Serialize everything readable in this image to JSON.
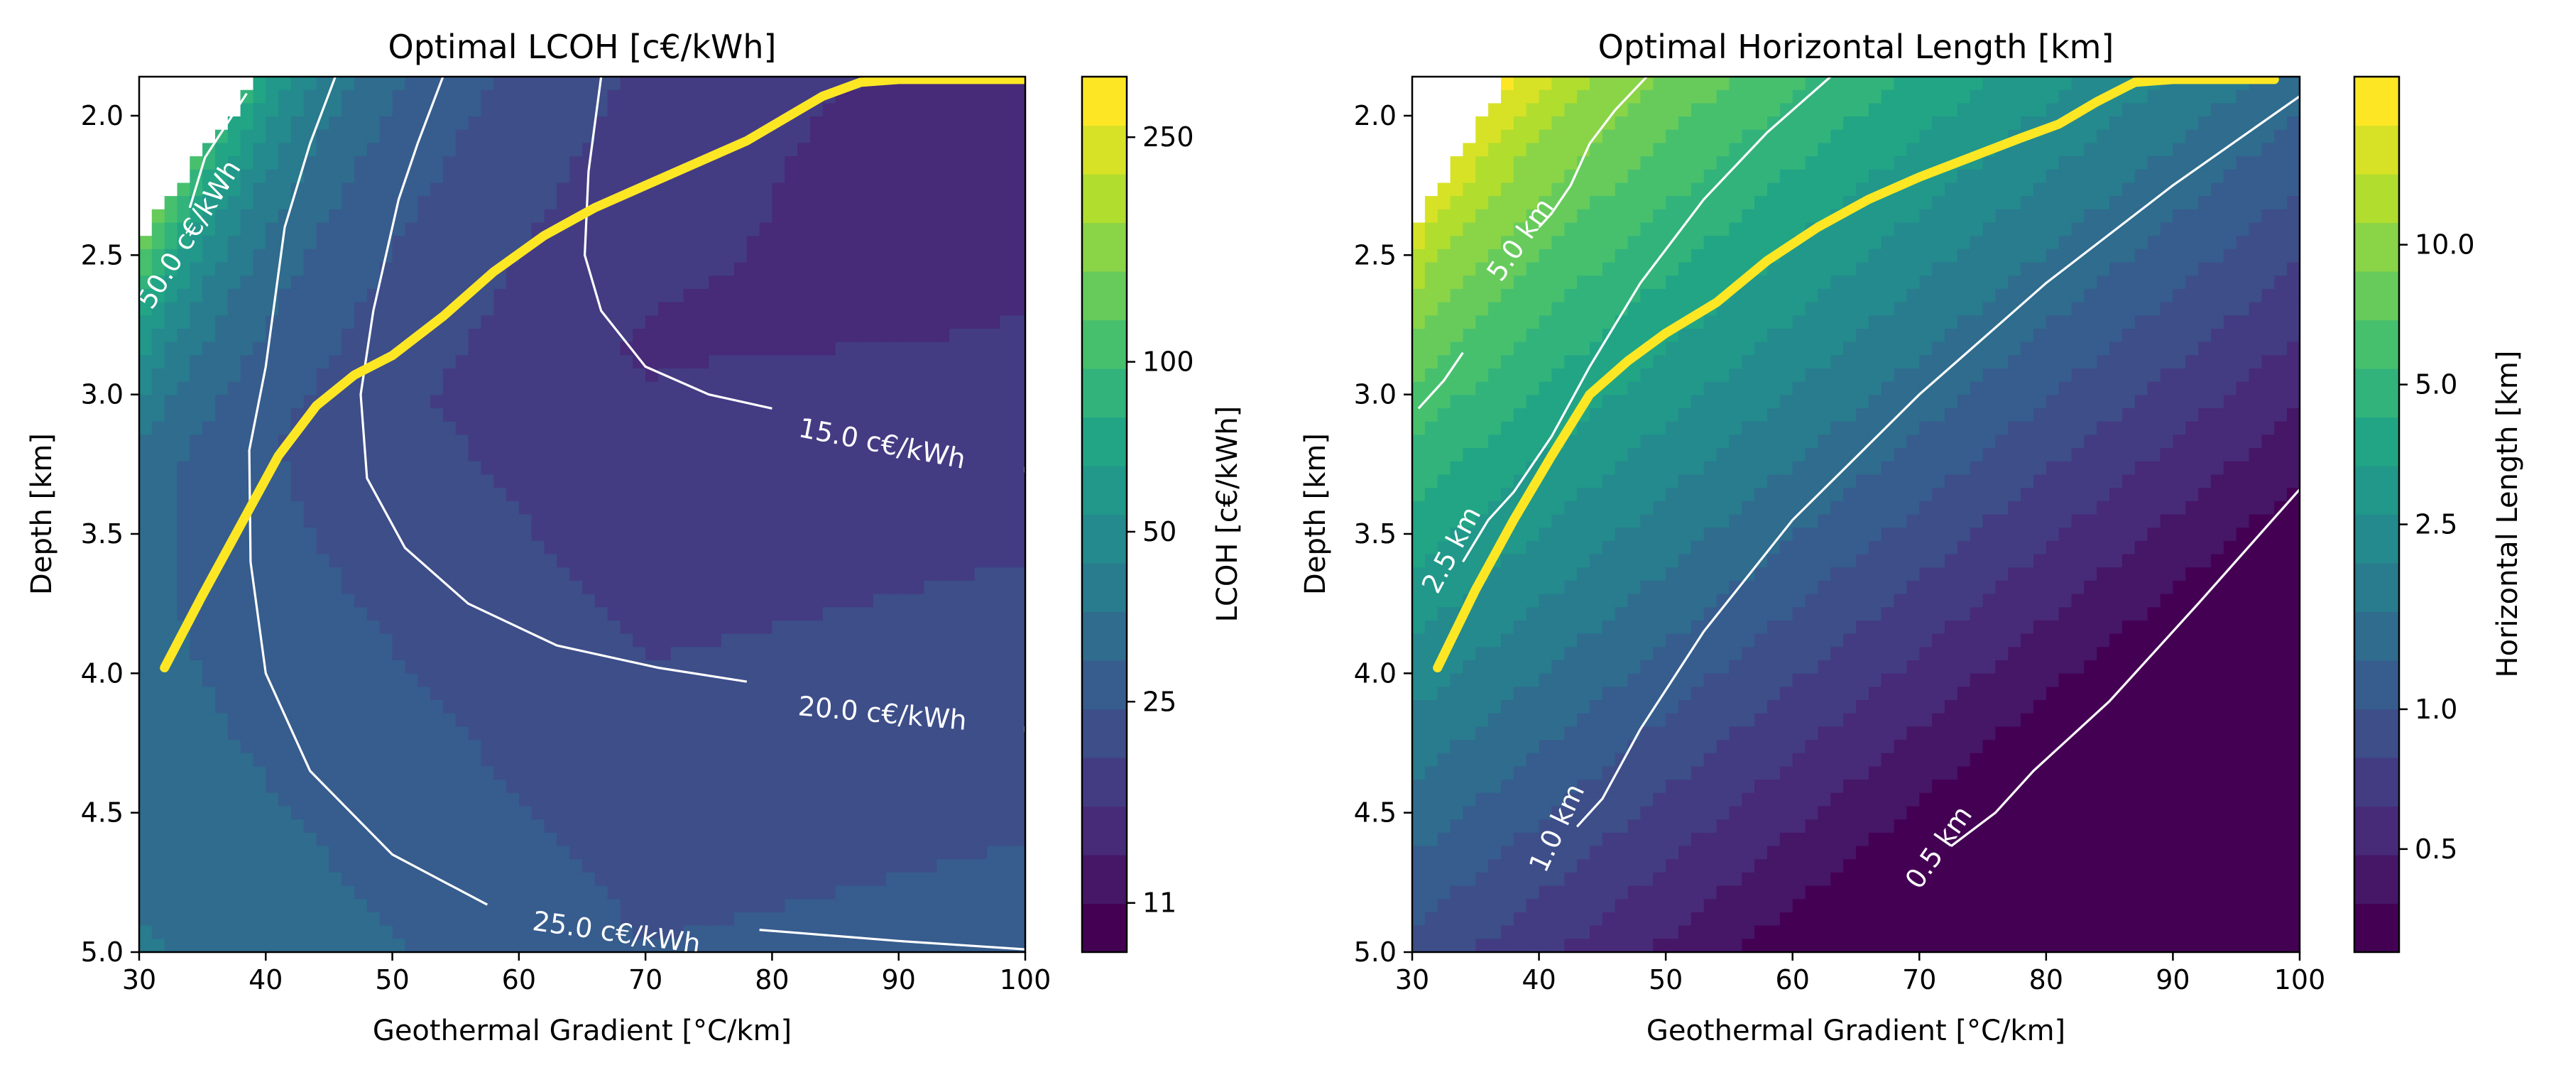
{
  "colors": {
    "viridis": [
      "#440154",
      "#482475",
      "#414487",
      "#355f8d",
      "#2a788e",
      "#21918c",
      "#22a884",
      "#44bf70",
      "#7ad151",
      "#bddf26",
      "#fde725"
    ],
    "optimal_line": "#fde725",
    "contour_line": "#ffffff"
  },
  "chart_data": [
    {
      "type": "contour",
      "title": "Optimal LCOH [c€/kWh]",
      "xlabel": "Geothermal Gradient [°C/km]",
      "ylabel": "Depth [km]",
      "xlim": [
        30,
        100
      ],
      "ylim": [
        1.86,
        5.0
      ],
      "y_inverted": true,
      "x_ticks": [
        "30",
        "40",
        "50",
        "60",
        "70",
        "80",
        "90",
        "100"
      ],
      "x_tick_values": [
        30,
        40,
        50,
        60,
        70,
        80,
        90,
        100
      ],
      "y_ticks": [
        "2.0",
        "2.5",
        "3.0",
        "3.5",
        "4.0",
        "4.5",
        "5.0"
      ],
      "y_tick_values": [
        2.0,
        2.5,
        3.0,
        3.5,
        4.0,
        4.5,
        5.0
      ],
      "colorbar": {
        "label": "LCOH [c€/kWh]",
        "scale": "log",
        "range": [
          9,
          320
        ],
        "ticks": [
          "11",
          "25",
          "50",
          "100",
          "250"
        ],
        "tick_values": [
          11,
          25,
          50,
          100,
          250
        ]
      },
      "contour_lines": [
        {
          "label": "15.0 c€/kWh",
          "points": [
            [
              66.5,
              1.86
            ],
            [
              65.5,
              2.2
            ],
            [
              65.2,
              2.5
            ],
            [
              66.5,
              2.7
            ],
            [
              70,
              2.9
            ],
            [
              75,
              3.0
            ],
            [
              80,
              3.05
            ]
          ],
          "label_at": [
            82,
            3.15
          ],
          "label_angle": 11,
          "tail": [
            [
              100,
              3.26
            ],
            [
              100,
              3.28
            ]
          ]
        },
        {
          "label": "20.0 c€/kWh",
          "points": [
            [
              54,
              1.86
            ],
            [
              52,
              2.1
            ],
            [
              50.5,
              2.3
            ],
            [
              48.5,
              2.7
            ],
            [
              47.5,
              3.0
            ],
            [
              48,
              3.3
            ],
            [
              51,
              3.55
            ],
            [
              56,
              3.75
            ],
            [
              63,
              3.9
            ],
            [
              71,
              3.98
            ],
            [
              78,
              4.03
            ]
          ],
          "label_at": [
            82,
            4.15
          ],
          "label_angle": 5,
          "tail": [
            [
              100,
              4.19
            ],
            [
              100,
              4.21
            ]
          ]
        },
        {
          "label": "25.0 c€/kWh",
          "points": [
            [
              45.5,
              1.86
            ],
            [
              43.5,
              2.1
            ],
            [
              41.5,
              2.4
            ],
            [
              40,
              2.9
            ],
            [
              38.7,
              3.2
            ],
            [
              38.8,
              3.6
            ],
            [
              40,
              4.0
            ],
            [
              43.5,
              4.35
            ],
            [
              50,
              4.65
            ],
            [
              57.5,
              4.83
            ]
          ],
          "label_at": [
            61,
            4.92
          ],
          "label_angle": 8,
          "tail": [
            [
              79,
              4.92
            ],
            [
              90,
              4.96
            ],
            [
              100,
              4.99
            ]
          ]
        },
        {
          "label": "50.0 c€/kWh",
          "points": [
            [
              38.5,
              1.92
            ],
            [
              35.2,
              2.15
            ],
            [
              34,
              2.33
            ]
          ],
          "label_at": [
            31,
            2.7
          ],
          "label_angle": -58,
          "tail": [
            [
              30,
              3.05
            ],
            [
              30,
              3.05
            ]
          ]
        }
      ],
      "optimal_curve": [
        [
          32,
          3.98
        ],
        [
          35,
          3.72
        ],
        [
          38,
          3.47
        ],
        [
          41,
          3.22
        ],
        [
          44,
          3.04
        ],
        [
          47,
          2.93
        ],
        [
          50,
          2.86
        ],
        [
          54,
          2.72
        ],
        [
          58,
          2.56
        ],
        [
          62,
          2.43
        ],
        [
          66,
          2.33
        ],
        [
          70,
          2.25
        ],
        [
          74,
          2.17
        ],
        [
          78,
          2.09
        ],
        [
          81,
          2.01
        ],
        [
          84,
          1.93
        ],
        [
          87,
          1.88
        ],
        [
          90,
          1.87
        ],
        [
          100,
          1.87
        ]
      ]
    },
    {
      "type": "contour",
      "title": "Optimal Horizontal Length [km]",
      "xlabel": "Geothermal Gradient [°C/km]",
      "ylabel": "Depth [km]",
      "xlim": [
        30,
        100
      ],
      "ylim": [
        1.86,
        5.0
      ],
      "y_inverted": true,
      "x_ticks": [
        "30",
        "40",
        "50",
        "60",
        "70",
        "80",
        "90",
        "100"
      ],
      "x_tick_values": [
        30,
        40,
        50,
        60,
        70,
        80,
        90,
        100
      ],
      "y_ticks": [
        "2.0",
        "2.5",
        "3.0",
        "3.5",
        "4.0",
        "4.5",
        "5.0"
      ],
      "y_tick_values": [
        2.0,
        2.5,
        3.0,
        3.5,
        4.0,
        4.5,
        5.0
      ],
      "colorbar": {
        "label": "Horizontal Length [km]",
        "scale": "log",
        "range": [
          0.3,
          23
        ],
        "ticks": [
          "0.5",
          "1.0",
          "2.5",
          "5.0",
          "10.0"
        ],
        "tick_values": [
          0.5,
          1.0,
          2.5,
          5.0,
          10.0
        ]
      },
      "contour_lines": [
        {
          "label": "5.0 km",
          "points": [
            [
              48.5,
              1.86
            ],
            [
              46,
              1.98
            ],
            [
              44,
              2.1
            ],
            [
              42.5,
              2.25
            ],
            [
              41,
              2.35
            ],
            [
              40,
              2.4
            ]
          ],
          "label_at": [
            37,
            2.6
          ],
          "label_angle": -55,
          "tail": [
            [
              34,
              2.85
            ],
            [
              32.5,
              2.95
            ],
            [
              30.5,
              3.05
            ]
          ]
        },
        {
          "label": "2.5 km",
          "points": [
            [
              63,
              1.86
            ],
            [
              58,
              2.06
            ],
            [
              53,
              2.3
            ],
            [
              48,
              2.6
            ],
            [
              44,
              2.9
            ],
            [
              41,
              3.15
            ],
            [
              38,
              3.35
            ],
            [
              36,
              3.45
            ],
            [
              34,
              3.6
            ]
          ],
          "label_at": [
            32,
            3.72
          ],
          "label_angle": -62,
          "tail": [
            [
              31,
              3.9
            ],
            [
              31,
              3.9
            ]
          ]
        },
        {
          "label": "1.0 km",
          "points": [
            [
              100,
              1.93
            ],
            [
              90,
              2.25
            ],
            [
              80,
              2.6
            ],
            [
              70,
              3.0
            ],
            [
              60,
              3.45
            ],
            [
              53,
              3.85
            ],
            [
              48,
              4.2
            ],
            [
              45,
              4.45
            ],
            [
              43,
              4.55
            ]
          ],
          "label_at": [
            40.5,
            4.72
          ],
          "label_angle": -65,
          "tail": [
            [
              38,
              4.95
            ],
            [
              38,
              4.95
            ]
          ]
        },
        {
          "label": "0.5 km",
          "points": [
            [
              100,
              3.34
            ],
            [
              92,
              3.75
            ],
            [
              85,
              4.1
            ],
            [
              79,
              4.35
            ],
            [
              76,
              4.5
            ],
            [
              72.5,
              4.62
            ]
          ],
          "label_at": [
            70,
            4.78
          ],
          "label_angle": -55,
          "tail": [
            [
              67,
              4.97
            ],
            [
              67,
              4.97
            ]
          ]
        }
      ],
      "optimal_curve": [
        [
          32,
          3.98
        ],
        [
          35,
          3.7
        ],
        [
          38,
          3.45
        ],
        [
          41,
          3.22
        ],
        [
          44,
          3.0
        ],
        [
          47,
          2.88
        ],
        [
          50,
          2.78
        ],
        [
          54,
          2.67
        ],
        [
          58,
          2.52
        ],
        [
          62,
          2.4
        ],
        [
          66,
          2.3
        ],
        [
          70,
          2.22
        ],
        [
          74,
          2.15
        ],
        [
          78,
          2.08
        ],
        [
          81,
          2.03
        ],
        [
          84,
          1.95
        ],
        [
          87,
          1.88
        ],
        [
          90,
          1.87
        ],
        [
          98,
          1.87
        ]
      ]
    }
  ]
}
